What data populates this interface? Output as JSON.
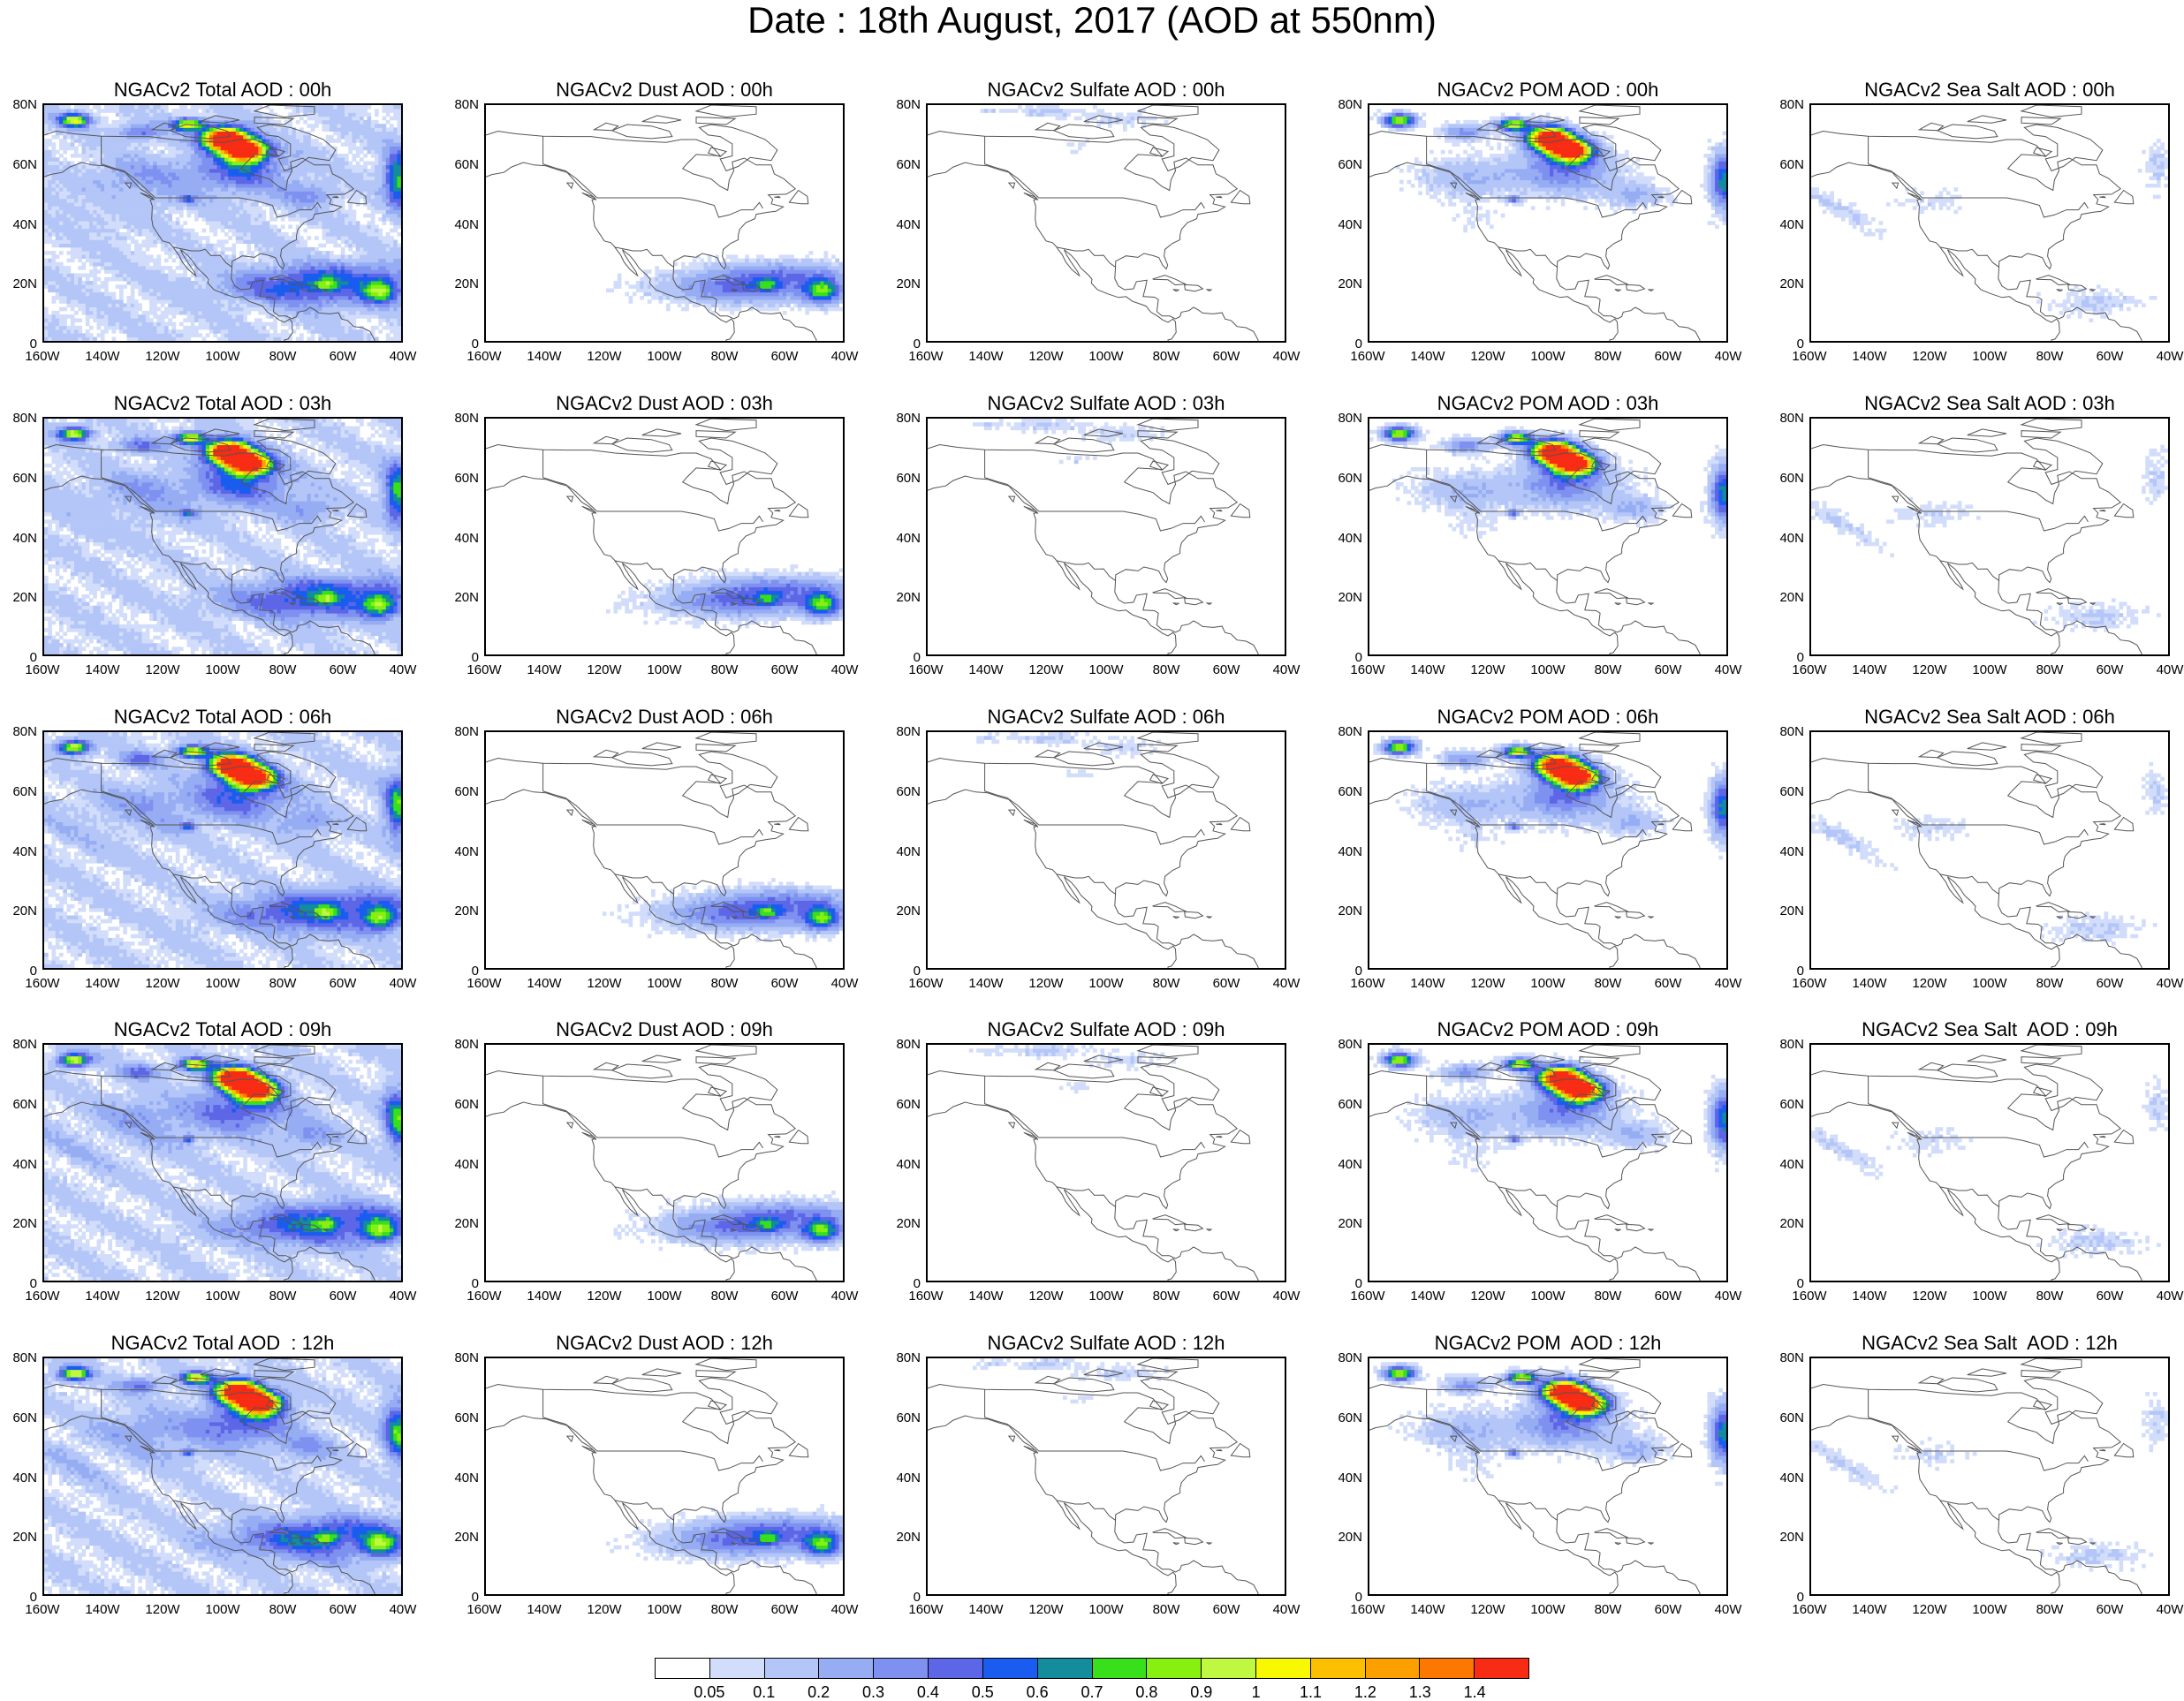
{
  "title": "Date : 18th August, 2017 (AOD at 550nm)",
  "axes": {
    "lat_ticks": [
      "80N",
      "60N",
      "40N",
      "20N",
      "0"
    ],
    "lon_ticks": [
      "160W",
      "140W",
      "120W",
      "100W",
      "80W",
      "60W",
      "40W"
    ],
    "lat_range": [
      0,
      80
    ],
    "lon_range": [
      -160,
      -40
    ]
  },
  "colorbar": {
    "labels": [
      "0.05",
      "0.1",
      "0.2",
      "0.3",
      "0.4",
      "0.5",
      "0.6",
      "0.7",
      "0.8",
      "0.9",
      "1",
      "1.1",
      "1.2",
      "1.3",
      "1.4"
    ],
    "colors": [
      "#ffffff",
      "#d2ddfb",
      "#b4c6f8",
      "#96adf4",
      "#7e91f0",
      "#5c66e6",
      "#1a5cf0",
      "#138c9b",
      "#38e01c",
      "#88f010",
      "#bef840",
      "#f8f800",
      "#fcc000",
      "#fca000",
      "#fc7800",
      "#f82c14"
    ]
  },
  "panels": [
    {
      "title": "NGACv2 Total AOD : 00h",
      "kind": "total"
    },
    {
      "title": "NGACv2 Dust AOD : 00h",
      "kind": "dust"
    },
    {
      "title": "NGACv2 Sulfate AOD : 00h",
      "kind": "sulfate"
    },
    {
      "title": "NGACv2 POM AOD : 00h",
      "kind": "pom"
    },
    {
      "title": "NGACv2 Sea Salt AOD : 00h",
      "kind": "seasalt"
    },
    {
      "title": "NGACv2 Total AOD : 03h",
      "kind": "total"
    },
    {
      "title": "NGACv2 Dust AOD : 03h",
      "kind": "dust"
    },
    {
      "title": "NGACv2 Sulfate AOD : 03h",
      "kind": "sulfate"
    },
    {
      "title": "NGACv2 POM AOD : 03h",
      "kind": "pom"
    },
    {
      "title": "NGACv2 Sea Salt AOD : 03h",
      "kind": "seasalt"
    },
    {
      "title": "NGACv2 Total AOD : 06h",
      "kind": "total"
    },
    {
      "title": "NGACv2 Dust AOD : 06h",
      "kind": "dust"
    },
    {
      "title": "NGACv2 Sulfate AOD : 06h",
      "kind": "sulfate"
    },
    {
      "title": "NGACv2 POM AOD : 06h",
      "kind": "pom"
    },
    {
      "title": "NGACv2 Sea Salt AOD : 06h",
      "kind": "seasalt"
    },
    {
      "title": "NGACv2 Total AOD : 09h",
      "kind": "total"
    },
    {
      "title": "NGACv2 Dust AOD : 09h",
      "kind": "dust"
    },
    {
      "title": "NGACv2 Sulfate AOD : 09h",
      "kind": "sulfate"
    },
    {
      "title": "NGACv2 POM AOD : 09h",
      "kind": "pom"
    },
    {
      "title": "NGACv2 Sea Salt  AOD : 09h",
      "kind": "seasalt"
    },
    {
      "title": "NGACv2 Total AOD  : 12h",
      "kind": "total"
    },
    {
      "title": "NGACv2 Dust AOD : 12h",
      "kind": "dust"
    },
    {
      "title": "NGACv2 Sulfate AOD : 12h",
      "kind": "sulfate"
    },
    {
      "title": "NGACv2 POM  AOD : 12h",
      "kind": "pom"
    },
    {
      "title": "NGACv2 Sea Salt  AOD : 12h",
      "kind": "seasalt"
    }
  ]
}
